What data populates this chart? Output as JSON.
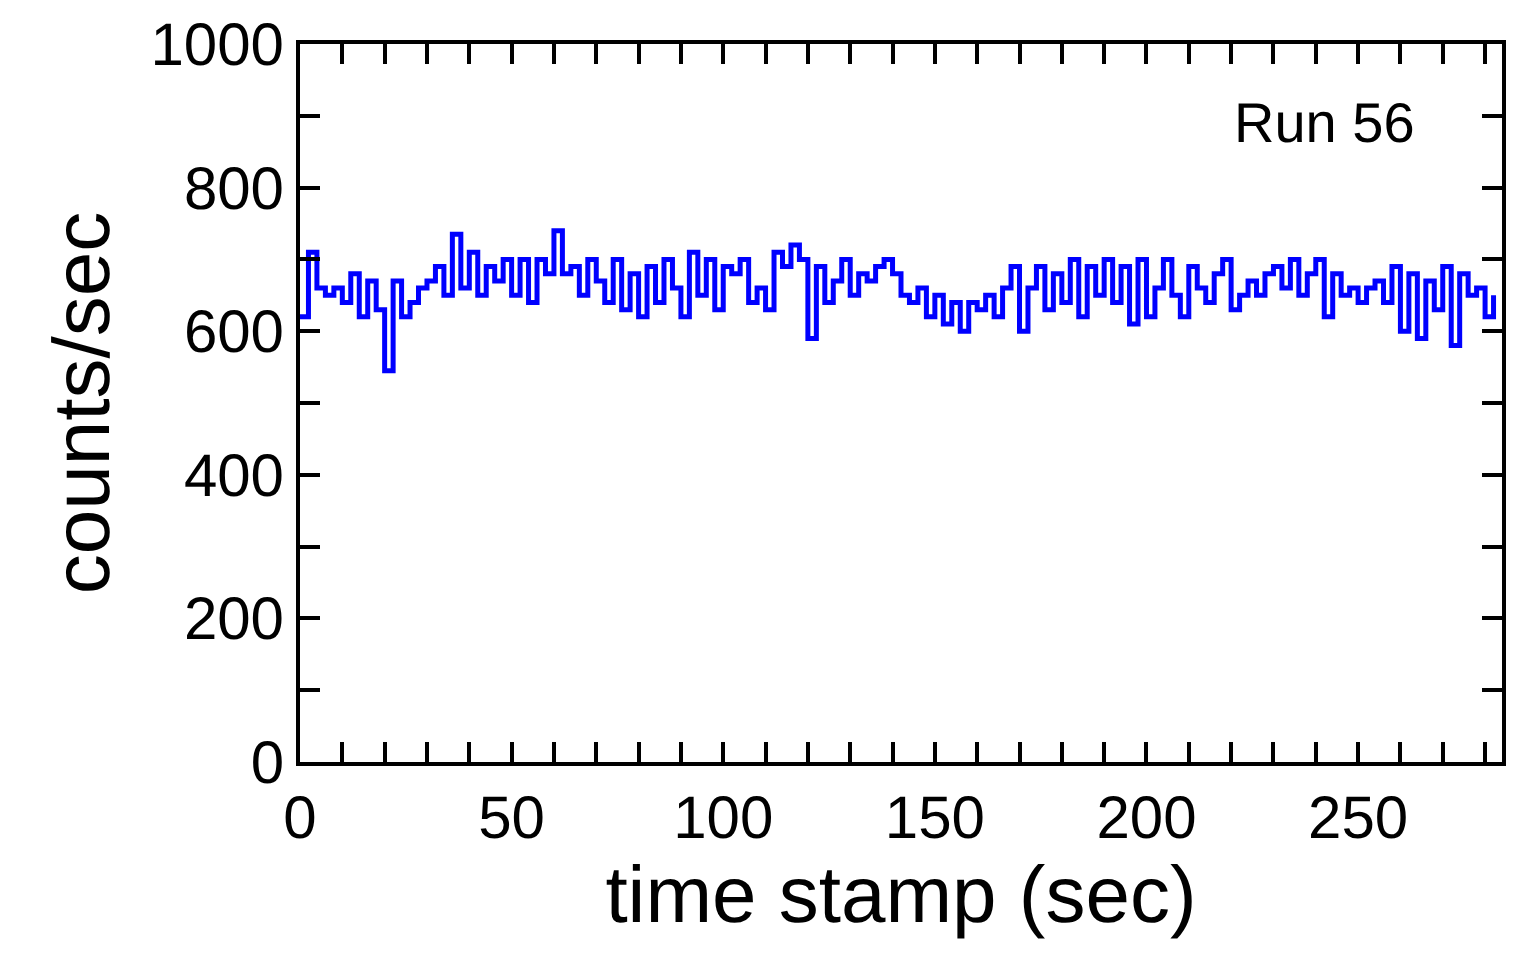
{
  "chart_data": {
    "type": "step",
    "xlabel": "time stamp (sec)",
    "ylabel": "counts/sec",
    "annotations": [
      "Run 56"
    ],
    "x": [
      0,
      2,
      4,
      6,
      8,
      10,
      12,
      14,
      16,
      18,
      20,
      22,
      24,
      26,
      28,
      30,
      32,
      34,
      36,
      38,
      40,
      42,
      44,
      46,
      48,
      50,
      52,
      54,
      56,
      58,
      60,
      62,
      64,
      66,
      68,
      70,
      72,
      74,
      76,
      78,
      80,
      82,
      84,
      86,
      88,
      90,
      92,
      94,
      96,
      98,
      100,
      102,
      104,
      106,
      108,
      110,
      112,
      114,
      116,
      118,
      120,
      122,
      124,
      126,
      128,
      130,
      132,
      134,
      136,
      138,
      140,
      142,
      144,
      146,
      148,
      150,
      152,
      154,
      156,
      158,
      160,
      162,
      164,
      166,
      168,
      170,
      172,
      174,
      176,
      178,
      180,
      182,
      184,
      186,
      188,
      190,
      192,
      194,
      196,
      198,
      200,
      202,
      204,
      206,
      208,
      210,
      212,
      214,
      216,
      218,
      220,
      222,
      224,
      226,
      228,
      230,
      232,
      234,
      236,
      238,
      240,
      242,
      244,
      246,
      248,
      250,
      252,
      254,
      256,
      258,
      260,
      262,
      264,
      266,
      268,
      270,
      272,
      274,
      276,
      278,
      280,
      282
    ],
    "values": [
      620,
      710,
      660,
      650,
      660,
      640,
      680,
      620,
      670,
      630,
      545,
      670,
      620,
      640,
      660,
      670,
      690,
      650,
      735,
      660,
      710,
      650,
      690,
      670,
      700,
      650,
      700,
      640,
      700,
      680,
      740,
      680,
      690,
      650,
      700,
      670,
      640,
      700,
      630,
      680,
      620,
      690,
      640,
      700,
      660,
      620,
      710,
      650,
      700,
      630,
      690,
      680,
      700,
      640,
      660,
      630,
      710,
      690,
      720,
      700,
      590,
      690,
      640,
      670,
      700,
      650,
      680,
      670,
      690,
      700,
      680,
      650,
      640,
      660,
      620,
      650,
      610,
      640,
      600,
      640,
      630,
      650,
      620,
      660,
      690,
      600,
      660,
      690,
      630,
      680,
      640,
      700,
      620,
      690,
      650,
      700,
      640,
      690,
      610,
      700,
      620,
      660,
      700,
      650,
      620,
      690,
      660,
      640,
      680,
      700,
      630,
      650,
      670,
      650,
      680,
      690,
      660,
      700,
      650,
      680,
      700,
      620,
      680,
      650,
      660,
      640,
      660,
      670,
      640,
      690,
      600,
      680,
      590,
      670,
      630,
      690,
      580,
      680,
      650,
      660,
      620,
      650
    ],
    "color": "#0000ff",
    "xlim": [
      0,
      284
    ],
    "ylim": [
      0,
      1000
    ],
    "xticks": [
      0,
      {
        "value": 10,
        "label": null
      },
      {
        "value": 20,
        "label": null
      },
      {
        "value": 30,
        "label": null
      },
      {
        "value": 40,
        "label": null
      },
      50,
      {
        "value": 60,
        "label": null
      },
      {
        "value": 70,
        "label": null
      },
      {
        "value": 80,
        "label": null
      },
      {
        "value": 90,
        "label": null
      },
      100,
      {
        "value": 110,
        "label": null
      },
      {
        "value": 120,
        "label": null
      },
      {
        "value": 130,
        "label": null
      },
      {
        "value": 140,
        "label": null
      },
      150,
      {
        "value": 160,
        "label": null
      },
      {
        "value": 170,
        "label": null
      },
      {
        "value": 180,
        "label": null
      },
      {
        "value": 190,
        "label": null
      },
      200,
      {
        "value": 210,
        "label": null
      },
      {
        "value": 220,
        "label": null
      },
      {
        "value": 230,
        "label": null
      },
      {
        "value": 240,
        "label": null
      },
      250,
      {
        "value": 260,
        "label": null
      },
      {
        "value": 270,
        "label": null
      },
      {
        "value": 280,
        "label": null
      }
    ],
    "yticks": [
      0,
      {
        "value": 100,
        "label": null
      },
      200,
      {
        "value": 300,
        "label": null
      },
      400,
      {
        "value": 500,
        "label": null
      },
      600,
      {
        "value": 700,
        "label": null
      },
      800,
      {
        "value": 900,
        "label": null
      },
      1000
    ],
    "legend": false,
    "marker": "none",
    "line_style": "solid"
  }
}
